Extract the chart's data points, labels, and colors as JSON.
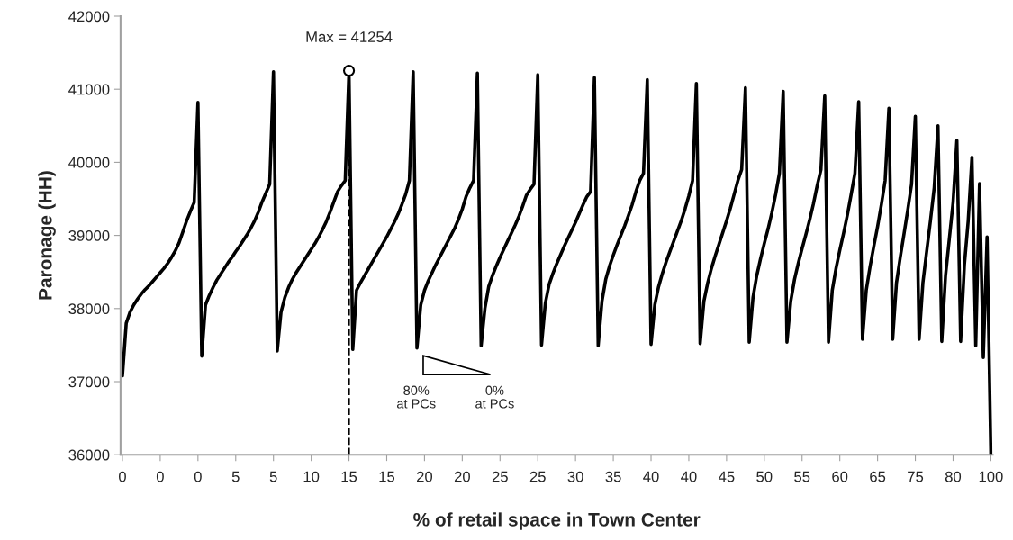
{
  "chart_data": {
    "type": "line",
    "xlabel": "% of retail space in Town Center",
    "ylabel": "Paronage (HH)",
    "ylim": [
      36000,
      42000
    ],
    "yticks": [
      36000,
      37000,
      38000,
      39000,
      40000,
      41000,
      42000
    ],
    "grid": false,
    "marker": "none",
    "line_style": "solid",
    "categories": [
      "0",
      null,
      null,
      null,
      null,
      null,
      null,
      null,
      null,
      null,
      "0",
      null,
      null,
      null,
      null,
      null,
      null,
      null,
      null,
      null,
      "0",
      null,
      null,
      null,
      null,
      null,
      null,
      null,
      null,
      null,
      "5",
      null,
      null,
      null,
      null,
      null,
      null,
      null,
      null,
      null,
      "5",
      null,
      null,
      null,
      null,
      null,
      null,
      null,
      null,
      null,
      "10",
      null,
      null,
      null,
      null,
      null,
      null,
      null,
      null,
      null,
      "15",
      null,
      null,
      null,
      null,
      null,
      null,
      null,
      null,
      null,
      "15",
      null,
      null,
      null,
      null,
      null,
      null,
      null,
      null,
      null,
      "20",
      null,
      null,
      null,
      null,
      null,
      null,
      null,
      null,
      null,
      "20",
      null,
      null,
      null,
      null,
      null,
      null,
      null,
      null,
      null,
      "25",
      null,
      null,
      null,
      null,
      null,
      null,
      null,
      null,
      null,
      "25",
      null,
      null,
      null,
      null,
      null,
      null,
      null,
      null,
      null,
      "30",
      null,
      null,
      null,
      null,
      null,
      null,
      null,
      null,
      null,
      "35",
      null,
      null,
      null,
      null,
      null,
      null,
      null,
      null,
      null,
      "40",
      null,
      null,
      null,
      null,
      null,
      null,
      null,
      null,
      null,
      "40",
      null,
      null,
      null,
      null,
      null,
      null,
      null,
      null,
      null,
      "45",
      null,
      null,
      null,
      null,
      null,
      null,
      null,
      null,
      null,
      "50",
      null,
      null,
      null,
      null,
      null,
      null,
      null,
      null,
      null,
      "55",
      null,
      null,
      null,
      null,
      null,
      null,
      null,
      null,
      null,
      "60",
      null,
      null,
      null,
      null,
      null,
      null,
      null,
      null,
      null,
      "65",
      null,
      null,
      null,
      null,
      null,
      null,
      null,
      null,
      null,
      "75",
      null,
      null,
      null,
      null,
      null,
      null,
      null,
      null,
      null,
      "80",
      null,
      null,
      null,
      null,
      null,
      null,
      null,
      null,
      null,
      "100"
    ],
    "series": [
      {
        "color": "#000000",
        "values": [
          37080,
          37800,
          37950,
          38050,
          38130,
          38200,
          38260,
          38310,
          38370,
          38430,
          38490,
          38550,
          38620,
          38700,
          38790,
          38900,
          39050,
          39200,
          39330,
          39450,
          40820,
          37350,
          38050,
          38180,
          38290,
          38390,
          38470,
          38550,
          38630,
          38700,
          38780,
          38850,
          38930,
          39010,
          39100,
          39200,
          39320,
          39460,
          39580,
          39700,
          41240,
          37420,
          37950,
          38150,
          38290,
          38400,
          38490,
          38570,
          38650,
          38730,
          38810,
          38890,
          38980,
          39080,
          39190,
          39320,
          39460,
          39600,
          39680,
          39750,
          41254,
          37440,
          38250,
          38350,
          38440,
          38530,
          38620,
          38710,
          38800,
          38890,
          38980,
          39080,
          39180,
          39290,
          39420,
          39560,
          39750,
          41240,
          37460,
          38050,
          38250,
          38380,
          38490,
          38600,
          38700,
          38800,
          38900,
          39000,
          39100,
          39220,
          39360,
          39530,
          39650,
          39750,
          41220,
          37490,
          38000,
          38300,
          38450,
          38580,
          38700,
          38810,
          38920,
          39030,
          39140,
          39260,
          39400,
          39550,
          39630,
          39700,
          41200,
          37500,
          38070,
          38330,
          38480,
          38610,
          38730,
          38850,
          38960,
          39070,
          39180,
          39300,
          39420,
          39530,
          39600,
          41160,
          37490,
          38100,
          38400,
          38580,
          38730,
          38870,
          39000,
          39130,
          39270,
          39420,
          39600,
          39750,
          39850,
          41130,
          37510,
          38050,
          38300,
          38480,
          38640,
          38780,
          38920,
          39060,
          39200,
          39360,
          39540,
          39750,
          41080,
          37520,
          38100,
          38350,
          38550,
          38720,
          38880,
          39040,
          39200,
          39370,
          39560,
          39750,
          39900,
          41020,
          37540,
          38150,
          38450,
          38680,
          38890,
          39090,
          39310,
          39560,
          39850,
          40970,
          37540,
          38100,
          38400,
          38620,
          38820,
          39010,
          39210,
          39430,
          39680,
          39900,
          40910,
          37540,
          38250,
          38550,
          38800,
          39030,
          39280,
          39560,
          39850,
          40830,
          37580,
          38250,
          38570,
          38850,
          39120,
          39420,
          39750,
          40740,
          37580,
          38350,
          38700,
          39020,
          39350,
          39700,
          40630,
          37580,
          38350,
          38780,
          39200,
          39650,
          40500,
          37550,
          38450,
          38950,
          39450,
          40300,
          37550,
          38600,
          39200,
          40070,
          37490,
          39710,
          37330,
          38980,
          36000
        ]
      }
    ],
    "annotations": [
      {
        "text": "Max = 41254",
        "x": "15",
        "y": 41254
      },
      "80%\nat PCs",
      "0%\nat PCs"
    ]
  }
}
